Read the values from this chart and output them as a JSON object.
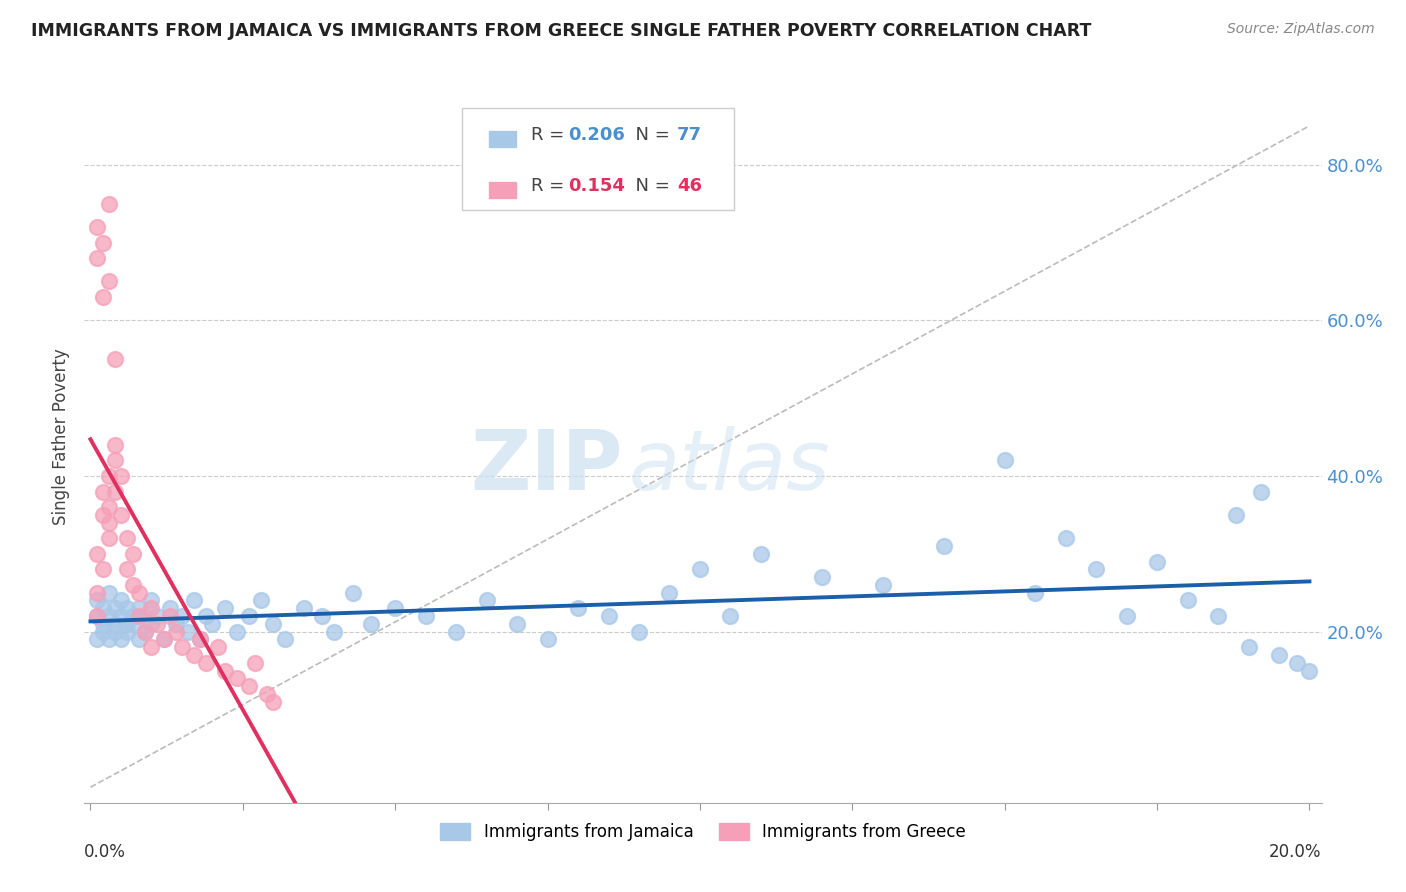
{
  "title": "IMMIGRANTS FROM JAMAICA VS IMMIGRANTS FROM GREECE SINGLE FATHER POVERTY CORRELATION CHART",
  "source": "Source: ZipAtlas.com",
  "ylabel": "Single Father Poverty",
  "xlim": [
    0.0,
    0.2
  ],
  "ylim": [
    -0.02,
    0.92
  ],
  "yticks": [
    0.2,
    0.4,
    0.6,
    0.8
  ],
  "ytick_labels": [
    "20.0%",
    "40.0%",
    "60.0%",
    "80.0%"
  ],
  "legend1_r": "0.206",
  "legend1_n": "77",
  "legend2_r": "0.154",
  "legend2_n": "46",
  "jamaica_color": "#a8c8e8",
  "greece_color": "#f5a0b8",
  "jamaica_line_color": "#1a5fa8",
  "greece_line_color": "#e03060",
  "watermark_zip": "ZIP",
  "watermark_atlas": "atlas",
  "jamaica_x": [
    0.001,
    0.001,
    0.001,
    0.002,
    0.002,
    0.002,
    0.003,
    0.003,
    0.003,
    0.004,
    0.004,
    0.004,
    0.005,
    0.005,
    0.005,
    0.006,
    0.006,
    0.006,
    0.007,
    0.007,
    0.008,
    0.008,
    0.009,
    0.009,
    0.01,
    0.01,
    0.011,
    0.012,
    0.013,
    0.014,
    0.015,
    0.016,
    0.017,
    0.018,
    0.019,
    0.02,
    0.022,
    0.024,
    0.026,
    0.028,
    0.03,
    0.032,
    0.035,
    0.038,
    0.04,
    0.043,
    0.046,
    0.05,
    0.055,
    0.06,
    0.065,
    0.07,
    0.075,
    0.08,
    0.085,
    0.09,
    0.095,
    0.1,
    0.105,
    0.11,
    0.12,
    0.13,
    0.14,
    0.15,
    0.155,
    0.16,
    0.165,
    0.17,
    0.175,
    0.18,
    0.185,
    0.19,
    0.195,
    0.198,
    0.2,
    0.188,
    0.192
  ],
  "jamaica_y": [
    0.22,
    0.19,
    0.24,
    0.2,
    0.23,
    0.21,
    0.22,
    0.19,
    0.25,
    0.21,
    0.23,
    0.2,
    0.22,
    0.24,
    0.19,
    0.21,
    0.23,
    0.2,
    0.22,
    0.21,
    0.19,
    0.23,
    0.22,
    0.2,
    0.24,
    0.21,
    0.22,
    0.19,
    0.23,
    0.21,
    0.22,
    0.2,
    0.24,
    0.19,
    0.22,
    0.21,
    0.23,
    0.2,
    0.22,
    0.24,
    0.21,
    0.19,
    0.23,
    0.22,
    0.2,
    0.25,
    0.21,
    0.23,
    0.22,
    0.2,
    0.24,
    0.21,
    0.19,
    0.23,
    0.22,
    0.2,
    0.25,
    0.28,
    0.22,
    0.3,
    0.27,
    0.26,
    0.31,
    0.42,
    0.25,
    0.32,
    0.28,
    0.22,
    0.29,
    0.24,
    0.22,
    0.18,
    0.17,
    0.16,
    0.15,
    0.35,
    0.38
  ],
  "greece_x": [
    0.001,
    0.001,
    0.001,
    0.002,
    0.002,
    0.002,
    0.003,
    0.003,
    0.003,
    0.003,
    0.004,
    0.004,
    0.004,
    0.005,
    0.005,
    0.006,
    0.006,
    0.007,
    0.007,
    0.008,
    0.008,
    0.009,
    0.01,
    0.01,
    0.011,
    0.012,
    0.013,
    0.014,
    0.015,
    0.017,
    0.018,
    0.019,
    0.021,
    0.022,
    0.024,
    0.026,
    0.027,
    0.029,
    0.03,
    0.001,
    0.001,
    0.002,
    0.002,
    0.003,
    0.003,
    0.004
  ],
  "greece_y": [
    0.22,
    0.25,
    0.3,
    0.28,
    0.35,
    0.38,
    0.32,
    0.36,
    0.4,
    0.34,
    0.42,
    0.38,
    0.44,
    0.35,
    0.4,
    0.28,
    0.32,
    0.26,
    0.3,
    0.22,
    0.25,
    0.2,
    0.23,
    0.18,
    0.21,
    0.19,
    0.22,
    0.2,
    0.18,
    0.17,
    0.19,
    0.16,
    0.18,
    0.15,
    0.14,
    0.13,
    0.16,
    0.12,
    0.11,
    0.68,
    0.72,
    0.63,
    0.7,
    0.65,
    0.75,
    0.55
  ],
  "diag_line_x": [
    0.0,
    0.2
  ],
  "diag_line_y": [
    0.0,
    0.85
  ]
}
